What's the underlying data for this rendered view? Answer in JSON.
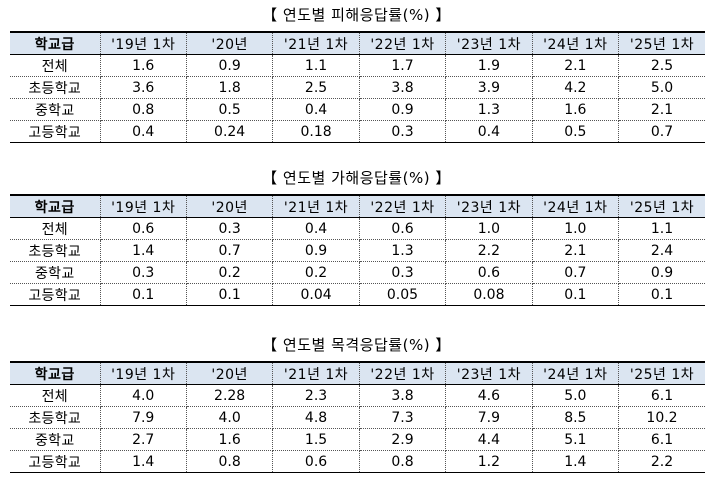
{
  "tables": [
    {
      "title": "【 연도별 피해응답률(%) 】",
      "headers": [
        "학교급",
        "'19년 1차",
        "'20년",
        "'21년 1차",
        "'22년 1차",
        "'23년 1차",
        "'24년 1차",
        "'25년 1차"
      ],
      "rows": [
        [
          "전체",
          "1.6",
          "0.9",
          "1.1",
          "1.7",
          "1.9",
          "2.1",
          "2.5"
        ],
        [
          "초등학교",
          "3.6",
          "1.8",
          "2.5",
          "3.8",
          "3.9",
          "4.2",
          "5.0"
        ],
        [
          "중학교",
          "0.8",
          "0.5",
          "0.4",
          "0.9",
          "1.3",
          "1.6",
          "2.1"
        ],
        [
          "고등학교",
          "0.4",
          "0.24",
          "0.18",
          "0.3",
          "0.4",
          "0.5",
          "0.7"
        ]
      ]
    },
    {
      "title": "【 연도별 가해응답률(%) 】",
      "headers": [
        "학교급",
        "'19년 1차",
        "'20년",
        "'21년 1차",
        "'22년 1차",
        "'23년 1차",
        "'24년 1차",
        "'25년 1차"
      ],
      "rows": [
        [
          "전체",
          "0.6",
          "0.3",
          "0.4",
          "0.6",
          "1.0",
          "1.0",
          "1.1"
        ],
        [
          "초등학교",
          "1.4",
          "0.7",
          "0.9",
          "1.3",
          "2.2",
          "2.1",
          "2.4"
        ],
        [
          "중학교",
          "0.3",
          "0.2",
          "0.2",
          "0.3",
          "0.6",
          "0.7",
          "0.9"
        ],
        [
          "고등학교",
          "0.1",
          "0.1",
          "0.04",
          "0.05",
          "0.08",
          "0.1",
          "0.1"
        ]
      ]
    },
    {
      "title": "【 연도별 목격응답률(%) 】",
      "headers": [
        "학교급",
        "'19년 1차",
        "'20년",
        "'21년 1차",
        "'22년 1차",
        "'23년 1차",
        "'24년 1차",
        "'25년 1차"
      ],
      "rows": [
        [
          "전체",
          "4.0",
          "2.28",
          "2.3",
          "3.8",
          "4.6",
          "5.0",
          "6.1"
        ],
        [
          "초등학교",
          "7.9",
          "4.0",
          "4.8",
          "7.3",
          "7.9",
          "8.5",
          "10.2"
        ],
        [
          "중학교",
          "2.7",
          "1.6",
          "1.5",
          "2.9",
          "4.4",
          "5.1",
          "6.1"
        ],
        [
          "고등학교",
          "1.4",
          "0.8",
          "0.6",
          "0.8",
          "1.2",
          "1.4",
          "2.2"
        ]
      ]
    }
  ],
  "colors": {
    "header_bg": "#dbe5f1",
    "border": "#000000",
    "dotted": "#555555"
  }
}
